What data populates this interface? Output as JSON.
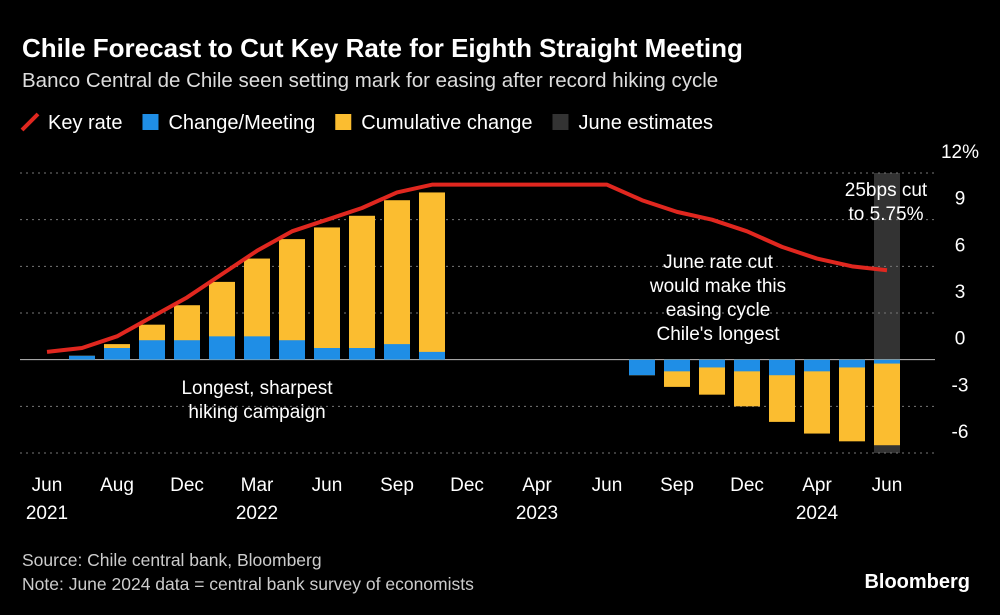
{
  "chart_data": {
    "type": "combo",
    "title": "Chile Forecast to Cut Key Rate for Eighth Straight Meeting",
    "subtitle": "Banco Central de Chile seen setting mark for easing after record hiking cycle",
    "categories": [
      "Jun\n2021",
      null,
      "Aug",
      null,
      "Dec",
      null,
      "Mar\n2022",
      null,
      "Jun",
      null,
      "Sep",
      null,
      "Dec",
      null,
      "Apr\n2023",
      null,
      "Jun",
      null,
      "Sep",
      null,
      "Dec",
      null,
      "Apr\n2024",
      null,
      "Jun"
    ],
    "series": [
      {
        "name": "Key rate",
        "type": "line",
        "color": "#e0271f",
        "values": [
          0.5,
          0.75,
          1.5,
          2.75,
          4.0,
          5.5,
          7.0,
          8.25,
          9.0,
          9.75,
          10.75,
          11.25,
          11.25,
          11.25,
          11.25,
          11.25,
          11.25,
          10.25,
          9.5,
          9.0,
          8.25,
          7.25,
          6.5,
          6.0,
          5.75
        ]
      },
      {
        "name": "Change/Meeting",
        "type": "bar",
        "color": "#1f8ee6",
        "values": [
          null,
          0.25,
          0.75,
          1.25,
          1.25,
          1.5,
          1.5,
          1.25,
          0.75,
          0.75,
          1.0,
          0.5,
          null,
          null,
          null,
          null,
          null,
          -1.0,
          -0.75,
          -0.5,
          -0.75,
          -1.0,
          -0.75,
          -0.5,
          -0.25
        ]
      },
      {
        "name": "Cumulative change",
        "type": "bar",
        "color": "#fbbd30",
        "values": [
          null,
          0.25,
          1.0,
          2.25,
          3.5,
          5.0,
          6.5,
          7.75,
          8.5,
          9.25,
          10.25,
          10.75,
          null,
          null,
          null,
          null,
          null,
          -1.0,
          -1.75,
          -2.25,
          -3.0,
          -4.0,
          -4.75,
          -5.25,
          -5.5
        ]
      }
    ],
    "highlight": {
      "name": "June estimates",
      "color": "#333333"
    },
    "ylim": [
      -6,
      12
    ],
    "yticks": [
      -6,
      -3,
      0,
      3,
      6,
      9,
      {
        "value": 12,
        "label": "12%"
      }
    ],
    "grid": true,
    "annotations": [
      [
        "Longest, sharpest",
        "hiking campaign"
      ],
      [
        "June rate cut",
        "would make this",
        "easing cycle",
        "Chile's longest"
      ],
      [
        "25bps cut",
        "to 5.75%"
      ]
    ],
    "source": "Source: Chile central bank, Bloomberg",
    "note": "Note: June 2024 data = central bank survey of economists",
    "brand": "Bloomberg"
  }
}
